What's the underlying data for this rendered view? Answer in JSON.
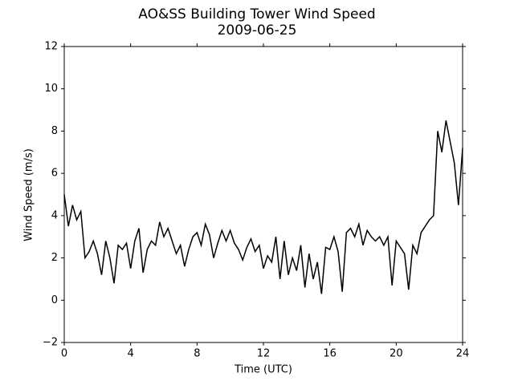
{
  "chart_data": {
    "type": "line",
    "title": "AO&SS Building Tower Wind Speed",
    "subtitle": "2009-06-25",
    "x_label": "Time (UTC)",
    "y_label": "Wind Speed (m/s)",
    "xlim": [
      0,
      24
    ],
    "xticks": [
      0,
      4,
      8,
      12,
      16,
      20,
      24
    ],
    "ylim": [
      -2,
      12
    ],
    "yticks": [
      {
        "value": -2,
        "label": "−2"
      },
      0,
      2,
      4,
      6,
      8,
      10,
      12
    ],
    "grid": false,
    "series": [
      {
        "name": "Wind Speed",
        "color": "#000000",
        "x": [
          0,
          0.25,
          0.5,
          0.75,
          1,
          1.25,
          1.5,
          1.75,
          2,
          2.25,
          2.5,
          2.75,
          3,
          3.25,
          3.5,
          3.75,
          4,
          4.25,
          4.5,
          4.75,
          5,
          5.25,
          5.5,
          5.75,
          6,
          6.25,
          6.5,
          6.75,
          7,
          7.25,
          7.5,
          7.75,
          8,
          8.25,
          8.5,
          8.75,
          9,
          9.25,
          9.5,
          9.75,
          10,
          10.25,
          10.5,
          10.75,
          11,
          11.25,
          11.5,
          11.75,
          12,
          12.25,
          12.5,
          12.75,
          13,
          13.25,
          13.5,
          13.75,
          14,
          14.25,
          14.5,
          14.75,
          15,
          15.25,
          15.5,
          15.75,
          16,
          16.25,
          16.5,
          16.75,
          17,
          17.25,
          17.5,
          17.75,
          18,
          18.25,
          18.5,
          18.75,
          19,
          19.25,
          19.5,
          19.75,
          20,
          20.25,
          20.5,
          20.75,
          21,
          21.25,
          21.5,
          21.75,
          22,
          22.25,
          22.5,
          22.75,
          23,
          23.25,
          23.5,
          23.75,
          24
        ],
        "values": [
          5.0,
          3.5,
          4.5,
          3.8,
          4.2,
          2.0,
          2.3,
          2.8,
          2.2,
          1.2,
          2.8,
          2.0,
          0.8,
          2.6,
          2.4,
          2.7,
          1.5,
          2.8,
          3.4,
          1.3,
          2.4,
          2.8,
          2.6,
          3.7,
          3.0,
          3.4,
          2.8,
          2.2,
          2.6,
          1.6,
          2.4,
          3.0,
          3.2,
          2.6,
          3.6,
          3.1,
          2.0,
          2.7,
          3.3,
          2.8,
          3.3,
          2.7,
          2.4,
          1.9,
          2.5,
          2.9,
          2.3,
          2.6,
          1.5,
          2.1,
          1.8,
          3.0,
          1.0,
          2.8,
          1.2,
          2.0,
          1.4,
          2.6,
          0.6,
          2.2,
          1.0,
          1.8,
          0.3,
          2.5,
          2.4,
          3.0,
          2.3,
          0.4,
          3.2,
          3.4,
          3.0,
          3.6,
          2.6,
          3.3,
          3.0,
          2.8,
          3.0,
          2.6,
          3.0,
          0.7,
          2.8,
          2.5,
          2.2,
          0.5,
          2.6,
          2.2,
          3.2,
          3.5,
          3.8,
          4.0,
          8.0,
          7.0,
          8.5,
          7.5,
          6.5,
          4.5,
          7.2
        ]
      }
    ]
  }
}
